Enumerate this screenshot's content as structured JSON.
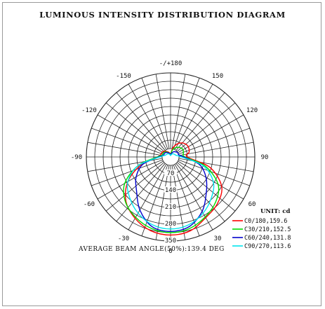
{
  "chart_data": {
    "type": "polar",
    "title": "LUMINOUS INTENSITY DISTRIBUTION DIAGRAM",
    "unit_label": "UNIT: cd",
    "angle_labels": [
      {
        "angle": 180,
        "text": "-/+180"
      },
      {
        "angle": -150,
        "text": "-150"
      },
      {
        "angle": 150,
        "text": "150"
      },
      {
        "angle": -120,
        "text": "-120"
      },
      {
        "angle": 120,
        "text": "120"
      },
      {
        "angle": -90,
        "text": "-90"
      },
      {
        "angle": 90,
        "text": "90"
      },
      {
        "angle": -60,
        "text": "-60"
      },
      {
        "angle": 60,
        "text": "60"
      },
      {
        "angle": -30,
        "text": "-30"
      },
      {
        "angle": 30,
        "text": "30"
      },
      {
        "angle": 0,
        "text": "0"
      }
    ],
    "radial_labels": [
      {
        "value": 70,
        "text": "70"
      },
      {
        "value": 140,
        "text": "140"
      },
      {
        "value": 210,
        "text": "210"
      },
      {
        "value": 280,
        "text": "280"
      },
      {
        "value": 350,
        "text": "350"
      }
    ],
    "r_max": 350,
    "spoke_step_deg": 10,
    "ring_step": 35,
    "angles": [
      0,
      15,
      30,
      45,
      60,
      75,
      90,
      105,
      120,
      135,
      150,
      165,
      180
    ],
    "series": [
      {
        "name": "C0/180,159.6",
        "color": "#ff0000",
        "left": [
          325,
          318,
          295,
          262,
          205,
          128,
          55,
          42,
          40,
          34,
          25,
          18,
          10
        ],
        "right": [
          325,
          318,
          292,
          275,
          245,
          170,
          70,
          80,
          85,
          80,
          65,
          40,
          10
        ]
      },
      {
        "name": "C30/210,152.5",
        "color": "#00dd00",
        "left": [
          315,
          308,
          290,
          265,
          220,
          140,
          55,
          35,
          35,
          30,
          22,
          15,
          8
        ],
        "right": [
          315,
          308,
          288,
          265,
          228,
          150,
          60,
          55,
          60,
          55,
          45,
          30,
          8
        ]
      },
      {
        "name": "C60/240,131.8",
        "color": "#0000cc",
        "left": [
          310,
          300,
          255,
          200,
          165,
          120,
          50,
          30,
          30,
          26,
          20,
          14,
          8
        ],
        "right": [
          310,
          300,
          262,
          210,
          170,
          125,
          55,
          35,
          35,
          30,
          25,
          16,
          8
        ]
      },
      {
        "name": "C90/270,113.6",
        "color": "#00e5ee",
        "left": [
          300,
          292,
          270,
          240,
          205,
          140,
          45,
          25,
          20,
          18,
          15,
          10,
          6
        ],
        "right": [
          300,
          292,
          270,
          240,
          205,
          140,
          45,
          25,
          20,
          18,
          15,
          10,
          6
        ]
      }
    ],
    "beam_angle_text": "AVERAGE BEAM ANGLE(50%):139.4 DEG"
  }
}
